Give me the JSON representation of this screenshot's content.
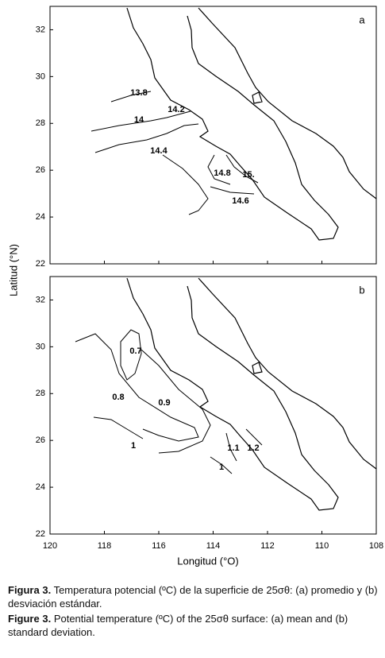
{
  "chart_data": [
    {
      "type": "map",
      "panel_label": "a",
      "ylabel": "Latitud  (°N)",
      "xlim": [
        120,
        108
      ],
      "xticks": [
        120,
        118,
        116,
        114,
        112,
        110,
        108
      ],
      "ylim": [
        22,
        33
      ],
      "yticks": [
        22,
        24,
        26,
        28,
        30,
        32
      ],
      "contour_labels": [
        "13.8",
        "14",
        "14.2",
        "14.4",
        "14.8",
        "15.",
        "14.6"
      ]
    },
    {
      "type": "map",
      "panel_label": "b",
      "xlabel": "Longitud  (°O)",
      "xlim": [
        120,
        108
      ],
      "xticks": [
        120,
        118,
        116,
        114,
        112,
        110,
        108
      ],
      "ylim": [
        22,
        33
      ],
      "yticks": [
        22,
        24,
        26,
        28,
        30,
        32
      ],
      "contour_labels": [
        "0.7",
        "0.8",
        "0.9",
        "1",
        "1.1",
        "1.2",
        "1"
      ]
    }
  ],
  "caption": {
    "es": {
      "lead": "Figura 3.",
      "text": "Temperatura potencial (ºC) de la superficie de 25σθ: (a) promedio y (b) desviación estándar."
    },
    "en": {
      "lead": "Figure 3.",
      "text": "Potential temperature (ºC) of the 25σθ surface: (a) mean and (b) standard deviation."
    }
  }
}
